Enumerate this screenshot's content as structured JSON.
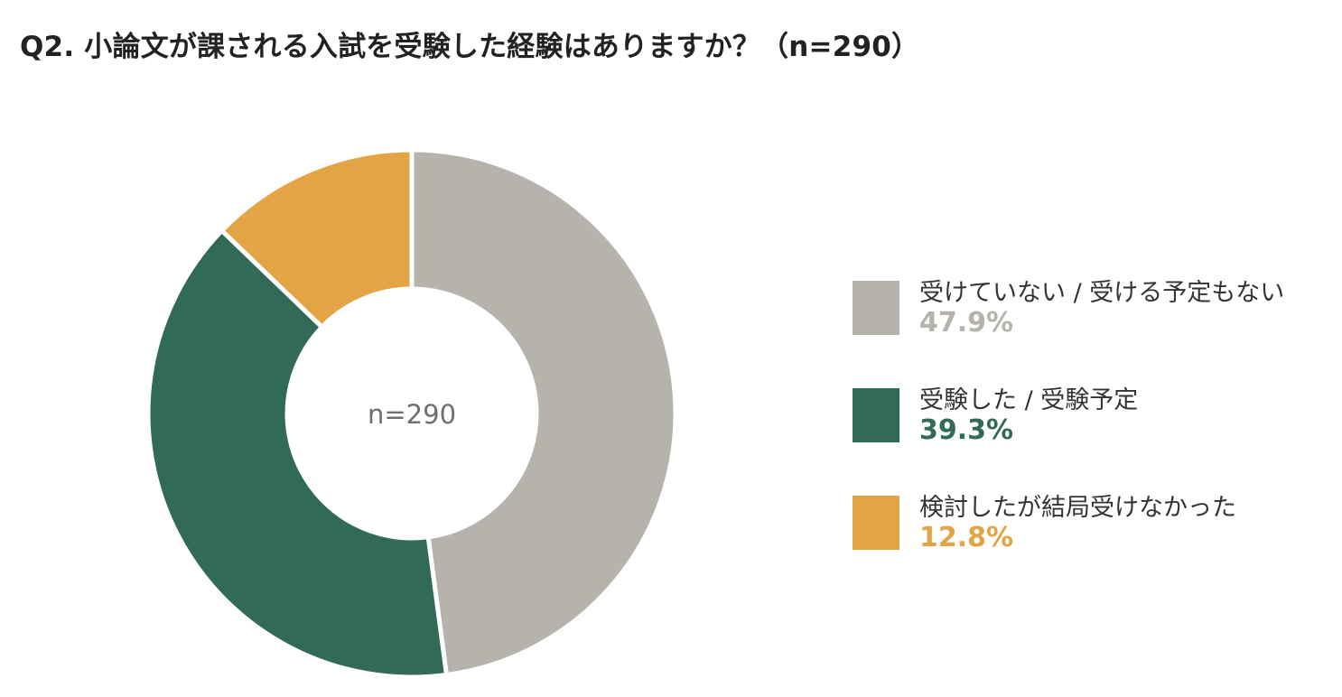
{
  "title": "Q2. 小論文が課される入試を受験した経験はありますか？（n=290）",
  "colors": {
    "gray": "#b5b3ab",
    "green": "#316b55",
    "orange": "#e2a444"
  },
  "chart_data": {
    "type": "pie",
    "donut": true,
    "title": "Q2. 小論文が課される入試を受験した経験はありますか？（n=290）",
    "center_label": "n=290",
    "legend_position": "right",
    "categories": [
      "受けていない / 受ける予定もない",
      "受験した / 受験予定",
      "検討したが結局受けなかった"
    ],
    "values": [
      47.9,
      39.3,
      12.8
    ],
    "value_labels": [
      "47.9%",
      "39.3%",
      "12.8%"
    ],
    "colors": [
      "#b5b3ab",
      "#316b55",
      "#e2a444"
    ]
  }
}
